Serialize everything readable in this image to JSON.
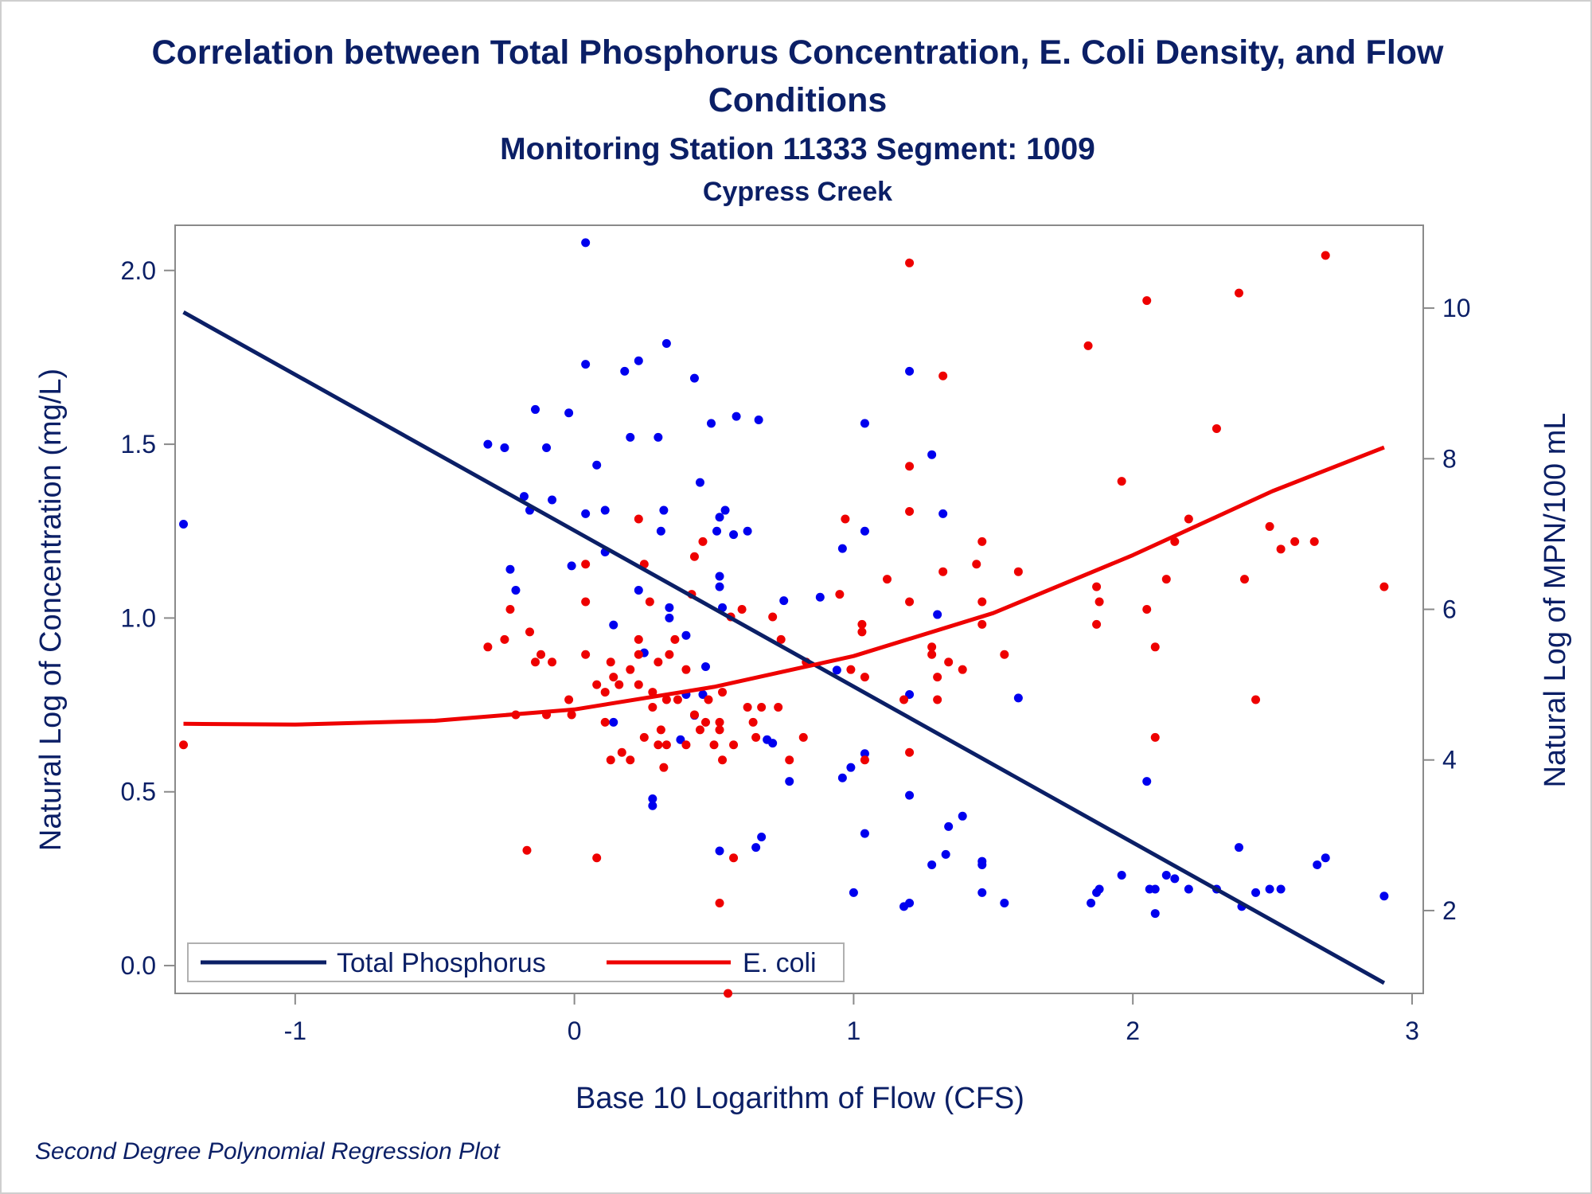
{
  "titles": {
    "line1": "Correlation between Total Phosphorus Concentration, E. Coli Density, and Flow",
    "line2": "Conditions",
    "subtitle": "Monitoring Station 11333 Segment: 1009",
    "subtitle2": "Cypress Creek"
  },
  "footnote": "Second Degree Polynomial Regression Plot",
  "colors": {
    "phosphorus_points": "#0000ee",
    "phosphorus_line": "#0b1f66",
    "ecoli": "#ee0000",
    "axis": "#8a8a8a",
    "text": "#0b1f66"
  },
  "chart_data": {
    "type": "scatter",
    "title": "Correlation between Total Phosphorus Concentration, E. Coli Density, and Flow Conditions",
    "xlabel": "Base 10 Logarithm of Flow (CFS)",
    "ylabel": "Natural Log of Concentration (mg/L)",
    "y2label": "Natural Log of MPN/100 mL",
    "xlim": [
      -1.43,
      3.04
    ],
    "ylim": [
      -0.08,
      2.13
    ],
    "y2lim": [
      0.9,
      11.1
    ],
    "xticks": [
      "-1",
      "0",
      "1",
      "2",
      "3"
    ],
    "yticks": [
      "0.0",
      "0.5",
      "1.0",
      "1.5",
      "2.0"
    ],
    "y2ticks": [
      "2",
      "4",
      "6",
      "8",
      "10"
    ],
    "legend_position": "bottom-left inside",
    "series": [
      {
        "name": "Total Phosphorus",
        "axis": "left",
        "points": [
          [
            -1.4,
            1.27
          ],
          [
            -0.31,
            1.5
          ],
          [
            -0.25,
            1.49
          ],
          [
            -0.23,
            1.14
          ],
          [
            -0.21,
            1.08
          ],
          [
            -0.18,
            1.35
          ],
          [
            -0.16,
            1.31
          ],
          [
            -0.14,
            1.6
          ],
          [
            -0.1,
            1.49
          ],
          [
            -0.08,
            1.34
          ],
          [
            -0.02,
            1.59
          ],
          [
            -0.01,
            1.15
          ],
          [
            0.04,
            2.08
          ],
          [
            0.04,
            1.73
          ],
          [
            0.04,
            1.3
          ],
          [
            0.08,
            1.44
          ],
          [
            0.11,
            1.31
          ],
          [
            0.11,
            1.19
          ],
          [
            0.14,
            0.98
          ],
          [
            0.14,
            0.7
          ],
          [
            0.18,
            1.71
          ],
          [
            0.2,
            1.52
          ],
          [
            0.23,
            1.74
          ],
          [
            0.23,
            1.08
          ],
          [
            0.25,
            0.9
          ],
          [
            0.28,
            0.48
          ],
          [
            0.28,
            0.46
          ],
          [
            0.3,
            1.52
          ],
          [
            0.31,
            1.25
          ],
          [
            0.32,
            1.31
          ],
          [
            0.33,
            1.79
          ],
          [
            0.34,
            1.03
          ],
          [
            0.34,
            1.0
          ],
          [
            0.38,
            0.65
          ],
          [
            0.4,
            0.95
          ],
          [
            0.4,
            0.78
          ],
          [
            0.43,
            1.69
          ],
          [
            0.43,
            0.72
          ],
          [
            0.45,
            1.39
          ],
          [
            0.46,
            0.78
          ],
          [
            0.47,
            0.86
          ],
          [
            0.49,
            1.56
          ],
          [
            0.51,
            1.25
          ],
          [
            0.52,
            1.29
          ],
          [
            0.52,
            1.12
          ],
          [
            0.52,
            1.09
          ],
          [
            0.53,
            1.03
          ],
          [
            0.54,
            1.31
          ],
          [
            0.52,
            0.33
          ],
          [
            0.57,
            1.24
          ],
          [
            0.58,
            1.58
          ],
          [
            0.62,
            1.25
          ],
          [
            0.65,
            0.34
          ],
          [
            0.66,
            1.57
          ],
          [
            0.67,
            0.37
          ],
          [
            0.69,
            0.65
          ],
          [
            0.71,
            0.64
          ],
          [
            0.75,
            1.05
          ],
          [
            0.77,
            0.53
          ],
          [
            0.88,
            1.06
          ],
          [
            0.94,
            0.85
          ],
          [
            0.96,
            1.2
          ],
          [
            0.96,
            0.54
          ],
          [
            0.99,
            0.57
          ],
          [
            1.0,
            0.21
          ],
          [
            1.04,
            1.56
          ],
          [
            1.04,
            1.25
          ],
          [
            1.04,
            0.61
          ],
          [
            1.04,
            0.38
          ],
          [
            1.18,
            0.17
          ],
          [
            1.2,
            1.71
          ],
          [
            1.2,
            0.78
          ],
          [
            1.2,
            0.49
          ],
          [
            1.2,
            0.18
          ],
          [
            1.28,
            1.47
          ],
          [
            1.28,
            0.29
          ],
          [
            1.3,
            1.01
          ],
          [
            1.32,
            1.3
          ],
          [
            1.33,
            0.32
          ],
          [
            1.34,
            0.4
          ],
          [
            1.39,
            0.43
          ],
          [
            1.46,
            0.3
          ],
          [
            1.46,
            0.29
          ],
          [
            1.46,
            0.21
          ],
          [
            1.54,
            0.18
          ],
          [
            1.59,
            0.77
          ],
          [
            1.85,
            0.18
          ],
          [
            1.87,
            0.21
          ],
          [
            1.88,
            0.22
          ],
          [
            1.96,
            0.26
          ],
          [
            2.05,
            0.53
          ],
          [
            2.06,
            0.22
          ],
          [
            2.08,
            0.22
          ],
          [
            2.08,
            0.15
          ],
          [
            2.12,
            0.26
          ],
          [
            2.15,
            0.25
          ],
          [
            2.2,
            0.22
          ],
          [
            2.3,
            0.22
          ],
          [
            2.38,
            0.34
          ],
          [
            2.39,
            0.17
          ],
          [
            2.44,
            0.21
          ],
          [
            2.49,
            0.22
          ],
          [
            2.53,
            0.22
          ],
          [
            2.66,
            0.29
          ],
          [
            2.69,
            0.31
          ],
          [
            2.9,
            0.2
          ]
        ],
        "fit": [
          [
            -1.4,
            1.88
          ],
          [
            2.9,
            -0.05
          ]
        ]
      },
      {
        "name": "E. coli",
        "axis": "right",
        "points": [
          [
            -1.4,
            4.2
          ],
          [
            -0.31,
            5.5
          ],
          [
            -0.25,
            5.6
          ],
          [
            -0.23,
            6.0
          ],
          [
            -0.21,
            4.6
          ],
          [
            -0.17,
            2.8
          ],
          [
            -0.16,
            5.7
          ],
          [
            -0.14,
            5.3
          ],
          [
            -0.12,
            5.4
          ],
          [
            -0.1,
            4.6
          ],
          [
            -0.08,
            5.3
          ],
          [
            -0.02,
            4.8
          ],
          [
            -0.01,
            4.6
          ],
          [
            0.04,
            6.6
          ],
          [
            0.04,
            6.1
          ],
          [
            0.04,
            5.4
          ],
          [
            0.08,
            5.0
          ],
          [
            0.08,
            2.7
          ],
          [
            0.11,
            4.9
          ],
          [
            0.11,
            4.5
          ],
          [
            0.13,
            4.0
          ],
          [
            0.13,
            5.3
          ],
          [
            0.14,
            5.1
          ],
          [
            0.16,
            5.0
          ],
          [
            0.17,
            4.1
          ],
          [
            0.2,
            5.2
          ],
          [
            0.2,
            4.0
          ],
          [
            0.23,
            7.2
          ],
          [
            0.23,
            5.6
          ],
          [
            0.23,
            5.4
          ],
          [
            0.23,
            5.0
          ],
          [
            0.25,
            6.6
          ],
          [
            0.25,
            4.3
          ],
          [
            0.27,
            6.1
          ],
          [
            0.28,
            4.9
          ],
          [
            0.28,
            4.7
          ],
          [
            0.3,
            5.3
          ],
          [
            0.3,
            4.2
          ],
          [
            0.31,
            4.4
          ],
          [
            0.32,
            3.9
          ],
          [
            0.33,
            4.8
          ],
          [
            0.33,
            4.2
          ],
          [
            0.34,
            5.4
          ],
          [
            0.36,
            5.6
          ],
          [
            0.37,
            4.8
          ],
          [
            0.4,
            5.2
          ],
          [
            0.4,
            4.2
          ],
          [
            0.42,
            6.2
          ],
          [
            0.43,
            6.7
          ],
          [
            0.43,
            4.6
          ],
          [
            0.45,
            4.4
          ],
          [
            0.46,
            6.9
          ],
          [
            0.47,
            4.5
          ],
          [
            0.48,
            4.8
          ],
          [
            0.5,
            4.2
          ],
          [
            0.52,
            4.5
          ],
          [
            0.53,
            4.9
          ],
          [
            0.52,
            4.4
          ],
          [
            0.52,
            2.1
          ],
          [
            0.53,
            4.0
          ],
          [
            0.55,
            0.9
          ],
          [
            0.56,
            5.9
          ],
          [
            0.57,
            2.7
          ],
          [
            0.57,
            4.2
          ],
          [
            0.6,
            6.0
          ],
          [
            0.62,
            4.7
          ],
          [
            0.64,
            4.5
          ],
          [
            0.65,
            4.3
          ],
          [
            0.67,
            4.7
          ],
          [
            0.71,
            5.9
          ],
          [
            0.73,
            4.7
          ],
          [
            0.74,
            5.6
          ],
          [
            0.77,
            4.0
          ],
          [
            0.82,
            4.3
          ],
          [
            0.83,
            5.3
          ],
          [
            0.95,
            6.2
          ],
          [
            0.97,
            7.2
          ],
          [
            0.99,
            5.2
          ],
          [
            1.03,
            5.8
          ],
          [
            1.03,
            5.7
          ],
          [
            1.04,
            4.0
          ],
          [
            1.04,
            5.1
          ],
          [
            1.12,
            6.4
          ],
          [
            1.18,
            4.8
          ],
          [
            1.2,
            10.6
          ],
          [
            1.2,
            7.9
          ],
          [
            1.2,
            7.3
          ],
          [
            1.2,
            6.1
          ],
          [
            1.2,
            4.1
          ],
          [
            1.28,
            5.5
          ],
          [
            1.28,
            5.4
          ],
          [
            1.3,
            5.1
          ],
          [
            1.3,
            4.8
          ],
          [
            1.32,
            9.1
          ],
          [
            1.32,
            6.5
          ],
          [
            1.34,
            5.3
          ],
          [
            1.39,
            5.2
          ],
          [
            1.44,
            6.6
          ],
          [
            1.46,
            6.9
          ],
          [
            1.46,
            6.1
          ],
          [
            1.46,
            5.8
          ],
          [
            1.54,
            5.4
          ],
          [
            1.59,
            6.5
          ],
          [
            1.84,
            9.5
          ],
          [
            1.87,
            6.3
          ],
          [
            1.87,
            5.8
          ],
          [
            1.88,
            6.1
          ],
          [
            1.96,
            7.7
          ],
          [
            2.05,
            10.1
          ],
          [
            2.05,
            6.0
          ],
          [
            2.08,
            5.5
          ],
          [
            2.08,
            4.3
          ],
          [
            2.12,
            6.4
          ],
          [
            2.15,
            6.9
          ],
          [
            2.2,
            7.2
          ],
          [
            2.3,
            8.4
          ],
          [
            2.38,
            10.2
          ],
          [
            2.4,
            6.4
          ],
          [
            2.44,
            4.8
          ],
          [
            2.49,
            7.1
          ],
          [
            2.53,
            6.8
          ],
          [
            2.58,
            6.9
          ],
          [
            2.65,
            6.9
          ],
          [
            2.69,
            10.7
          ],
          [
            2.9,
            6.3
          ]
        ],
        "fit": [
          [
            -1.4,
            4.48
          ],
          [
            -1.0,
            4.47
          ],
          [
            -0.5,
            4.52
          ],
          [
            0.0,
            4.67
          ],
          [
            0.5,
            4.97
          ],
          [
            1.0,
            5.38
          ],
          [
            1.5,
            5.95
          ],
          [
            2.0,
            6.72
          ],
          [
            2.5,
            7.57
          ],
          [
            2.9,
            8.15
          ]
        ]
      }
    ]
  }
}
